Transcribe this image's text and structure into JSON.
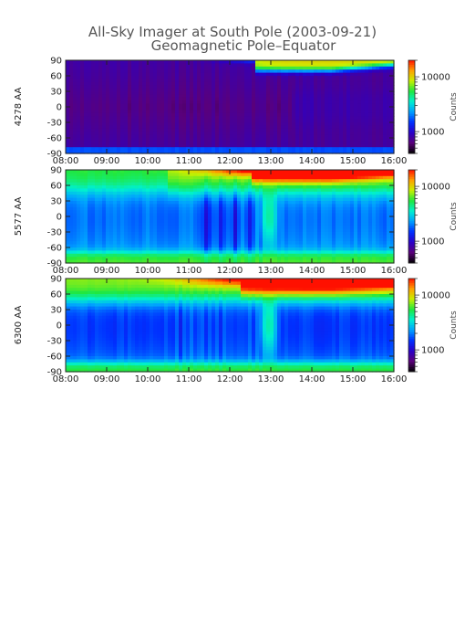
{
  "chart_data": {
    "type": "heatmap",
    "title": "All-Sky Imager at South Pole (2003-09-21)",
    "subtitle": "Geomagnetic Pole–Equator",
    "x_ticks": [
      "08:00",
      "09:00",
      "10:00",
      "11:00",
      "12:00",
      "13:00",
      "14:00",
      "15:00",
      "16:00"
    ],
    "xlim": [
      "08:00",
      "16:00"
    ],
    "y_ticks": [
      90,
      60,
      30,
      0,
      -30,
      -60,
      -90
    ],
    "ylim": [
      -90,
      90
    ],
    "colorbar": {
      "label": "Counts",
      "scale": "log",
      "ticks": [
        10000,
        1000
      ],
      "tick_labels": [
        "10000",
        "1000"
      ],
      "colors": [
        "#000000",
        "#5a007a",
        "#2a00c8",
        "#0030ff",
        "#00a0ff",
        "#00f0d0",
        "#20e840",
        "#c8f000",
        "#ffa000",
        "#ff1000"
      ]
    },
    "panels": [
      {
        "ylabel": "4278 AA",
        "range": [
          400,
          20000
        ]
      },
      {
        "ylabel": "5577 AA",
        "range": [
          400,
          20000
        ]
      },
      {
        "ylabel": "6300 AA",
        "range": [
          400,
          20000
        ]
      }
    ]
  }
}
